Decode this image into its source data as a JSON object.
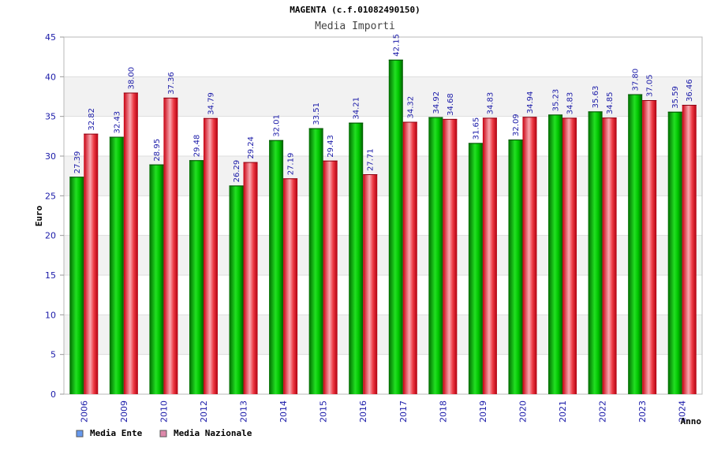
{
  "chart_data": {
    "type": "bar",
    "title": "MAGENTA (c.f.01082490150)",
    "subtitle": "Media Importi",
    "xlabel": "Anno",
    "ylabel": "Euro",
    "ylim": [
      0,
      45
    ],
    "yticks": [
      0,
      5,
      10,
      15,
      20,
      25,
      30,
      35,
      40,
      45
    ],
    "categories": [
      "2006",
      "2009",
      "2010",
      "2012",
      "2013",
      "2014",
      "2015",
      "2016",
      "2017",
      "2018",
      "2019",
      "2020",
      "2021",
      "2022",
      "2023",
      "2024"
    ],
    "series": [
      {
        "name": "Media Ente",
        "color": "#00c800",
        "legend_color": "#6699ee",
        "values": [
          27.39,
          32.43,
          28.95,
          29.48,
          26.29,
          32.01,
          33.51,
          34.21,
          42.15,
          34.92,
          31.65,
          32.09,
          35.23,
          35.63,
          37.8,
          35.59
        ],
        "labels": [
          "27.39",
          "32.43",
          "28.95",
          "29.48",
          "26.29",
          "32.01",
          "33.51",
          "34.21",
          "42.15",
          "34.92",
          "31.65",
          "32.09",
          "35.23",
          "35.63",
          "37.80",
          "35.59"
        ]
      },
      {
        "name": "Media Nazionale",
        "color": "#e8202a",
        "legend_color": "#dd88aa",
        "values": [
          32.82,
          38.0,
          37.36,
          34.79,
          29.24,
          27.19,
          29.43,
          27.71,
          34.32,
          34.68,
          34.83,
          34.94,
          34.83,
          34.85,
          37.05,
          36.46
        ],
        "labels": [
          "32.82",
          "38.00",
          "37.36",
          "34.79",
          "29.24",
          "27.19",
          "29.43",
          "27.71",
          "34.32",
          "34.68",
          "34.83",
          "34.94",
          "34.83",
          "34.85",
          "37.05",
          "36.46"
        ]
      }
    ],
    "grid": true,
    "legend_position": "bottom-left"
  }
}
